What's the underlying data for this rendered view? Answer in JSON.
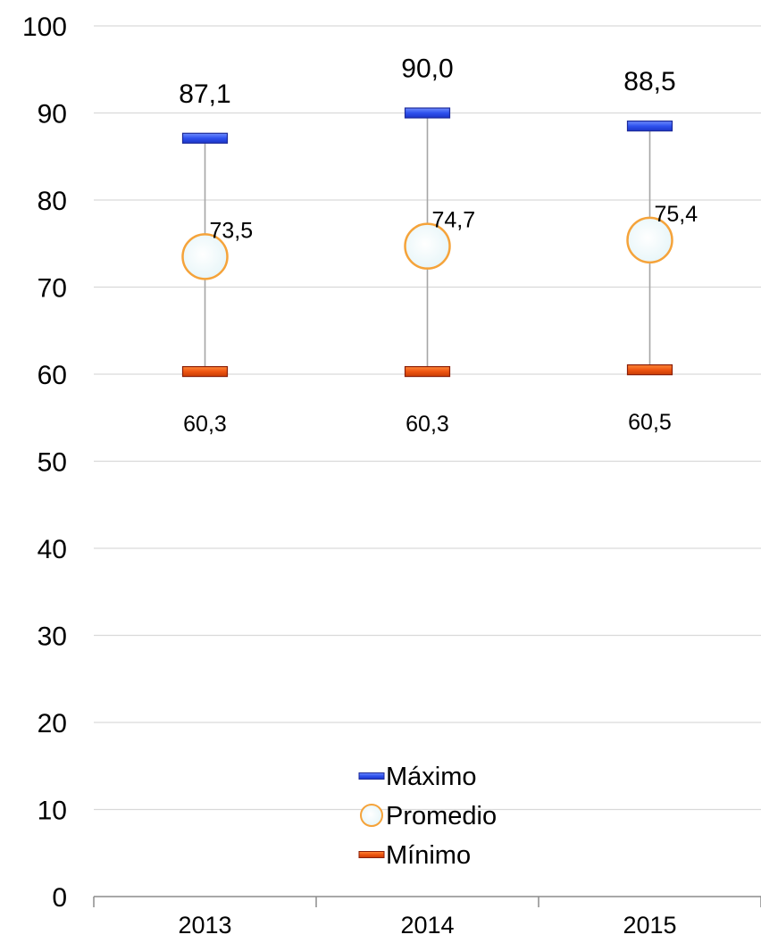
{
  "chart_data": {
    "type": "scatter",
    "categories": [
      "2013",
      "2014",
      "2015"
    ],
    "series": [
      {
        "name": "Máximo",
        "values": [
          87.1,
          90.0,
          88.5
        ],
        "labels": [
          "87,1",
          "90,0",
          "88,5"
        ],
        "marker": "dash",
        "color": "#3355ee"
      },
      {
        "name": "Promedio",
        "values": [
          73.5,
          74.7,
          75.4
        ],
        "labels": [
          "73,5",
          "74,7",
          "75,4"
        ],
        "marker": "circle",
        "color": "#f5a33a"
      },
      {
        "name": "Mínimo",
        "values": [
          60.3,
          60.3,
          60.5
        ],
        "labels": [
          "60,3",
          "60,3",
          "60,5"
        ],
        "marker": "dash",
        "color": "#ee5511"
      }
    ],
    "ylim": [
      0,
      100
    ],
    "yticks": [
      "0",
      "10",
      "20",
      "30",
      "40",
      "50",
      "60",
      "70",
      "80",
      "90",
      "100"
    ],
    "grid": true,
    "legend_position": "bottom-center",
    "range_lines": true
  }
}
